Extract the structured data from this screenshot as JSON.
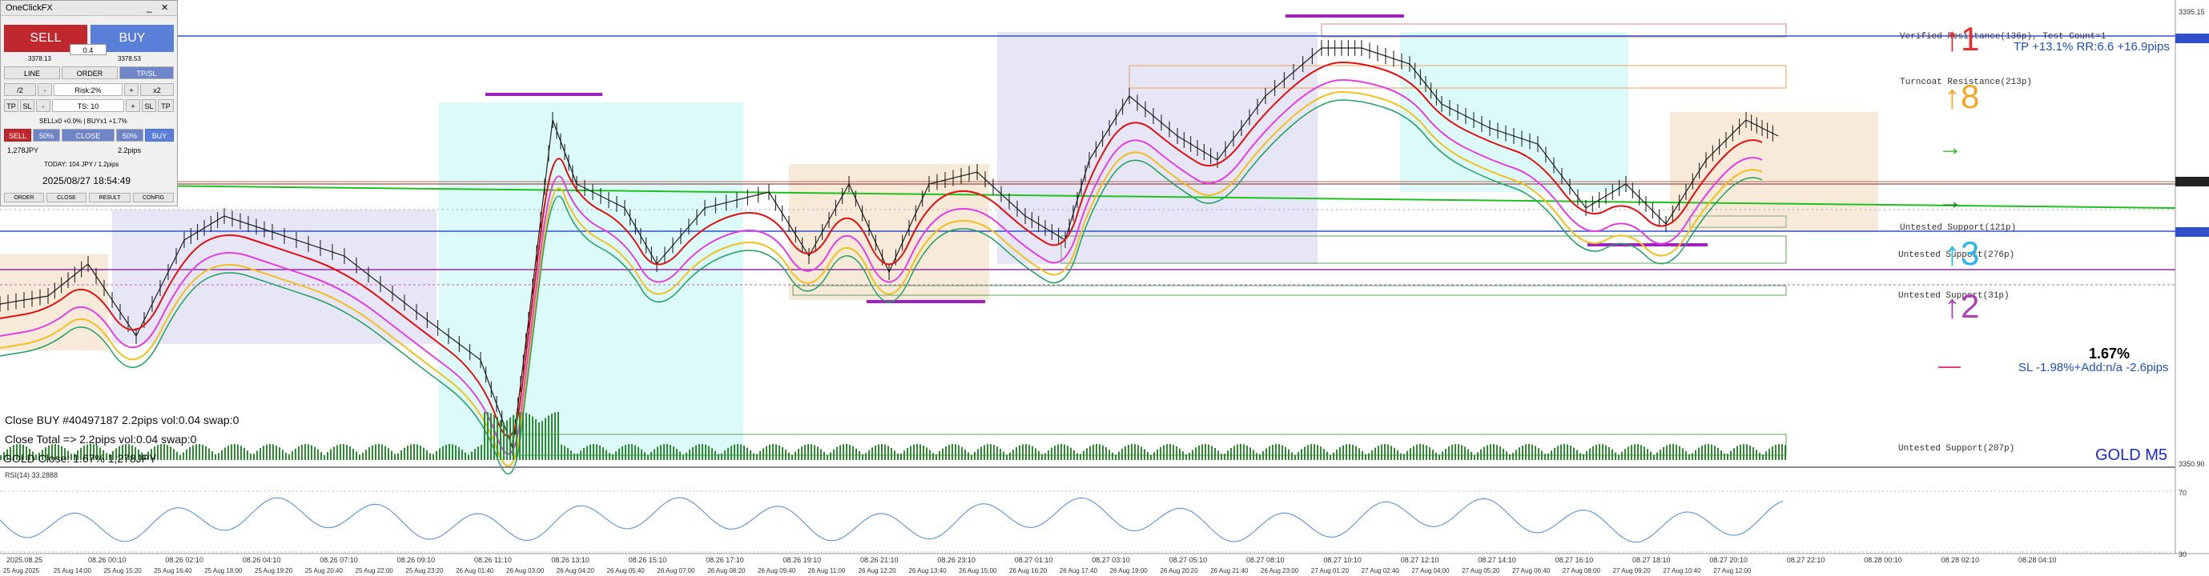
{
  "panel": {
    "title": "OneClickFX",
    "sell_label": "SELL",
    "buy_label": "BUY",
    "lot": "0.4",
    "sell_price": "3378.13",
    "buy_price": "3378.53",
    "tabs": [
      "LINE",
      "ORDER",
      "TP/SL"
    ],
    "risk_row": [
      "/2",
      "-",
      "Risk:2%",
      "+",
      "x2"
    ],
    "ts_row": [
      "TP",
      "SL",
      "-",
      "TS: 10",
      "+",
      "SL",
      "TP"
    ],
    "summary": "SELLx0 +0.0% | BUYx1 +1.7%",
    "action_row": [
      "SELL",
      "50%",
      "CLOSE",
      "50%",
      "BUY"
    ],
    "profit_jpy": "1,278JPY",
    "profit_pips": "2.2pips",
    "today": "TODAY: 104 JPY / 1.2pips",
    "datetime": "2025/08/27  18:54:49",
    "footer_tabs": [
      "ORDER",
      "CLOSE",
      "RESULT",
      "CONFIG"
    ]
  },
  "zones": {
    "verified_resistance": "Verified Resistance(136p), Test Count=1",
    "turncoat_resistance": "Turncoat Resistance(213p)",
    "untested_support_121": "Untested Support(121p)",
    "untested_support_276": "Untested Support(276p)",
    "untested_support_31": "Untested Support(31p)",
    "untested_support_207": "Untested Support(207p)"
  },
  "signals": {
    "arrow1": {
      "glyph": "↑",
      "label": "1",
      "color": "#e23030"
    },
    "arrow8": {
      "glyph": "↑",
      "label": "8",
      "color": "#f5a623"
    },
    "arrow3": {
      "glyph": "↑",
      "label": "3",
      "color": "#2bb5e8"
    },
    "arrow2": {
      "glyph": "↑",
      "label": "2",
      "color": "#b040b8"
    }
  },
  "info": {
    "tp_text": "TP +13.1% RR:6.6 +16.9pips",
    "sl_text": "SL -1.98%+Add:n/a -2.6pips",
    "percent": "1.67%",
    "symbol": "GOLD M5",
    "close_buy": "Close BUY #40497187 2.2pips vol:0.04 swap:0",
    "close_total": "Close Total => 2.2pips vol:0.04 swap:0",
    "gold_close": "GOLD Close: 1.67% 1,278JPY"
  },
  "price_scale": {
    "top": "3395.15",
    "bottom": "3350.90",
    "rsi_70": "70",
    "rsi_30": "30",
    "rsi_label": "RSI(14) 33.2888"
  },
  "time_axis": {
    "date": "2025.08.25",
    "top": [
      "08.26 00:10",
      "08.26 02:10",
      "08.26 04:10",
      "08.26 07:10",
      "08.26 09:10",
      "08.26 11:10",
      "08.26 13:10",
      "08.26 15:10",
      "08.26 17:10",
      "08.26 19:10",
      "08.26 21:10",
      "08.26 23:10",
      "08.27 01:10",
      "08.27 03:10",
      "08.27 05:10",
      "08.27 08:10",
      "08.27 10:10",
      "08.27 12:10",
      "08.27 14:10",
      "08.27 16:10",
      "08.27 18:10",
      "08.27 20:10",
      "08.27 22:10",
      "08.28 00:10",
      "08.28 02:10",
      "08.28 04:10"
    ],
    "bottom": [
      "25 Aug 2025",
      "25 Aug 14:00",
      "25 Aug 15:20",
      "25 Aug 16:40",
      "25 Aug 18:00",
      "25 Aug 19:20",
      "25 Aug 20:40",
      "25 Aug 22:00",
      "25 Aug 23:20",
      "26 Aug 01:40",
      "26 Aug 03:00",
      "26 Aug 04:20",
      "26 Aug 05:40",
      "26 Aug 07:00",
      "26 Aug 08:20",
      "26 Aug 09:40",
      "26 Aug 11:00",
      "26 Aug 12:20",
      "26 Aug 13:40",
      "26 Aug 15:00",
      "26 Aug 16:20",
      "26 Aug 17:40",
      "26 Aug 19:00",
      "26 Aug 20:20",
      "26 Aug 21:40",
      "26 Aug 23:00",
      "27 Aug 01:20",
      "27 Aug 02:40",
      "27 Aug 04:00",
      "27 Aug 05:20",
      "27 Aug 06:40",
      "27 Aug 08:00",
      "27 Aug 09:20",
      "27 Aug 10:40",
      "27 Aug 12:00"
    ]
  }
}
